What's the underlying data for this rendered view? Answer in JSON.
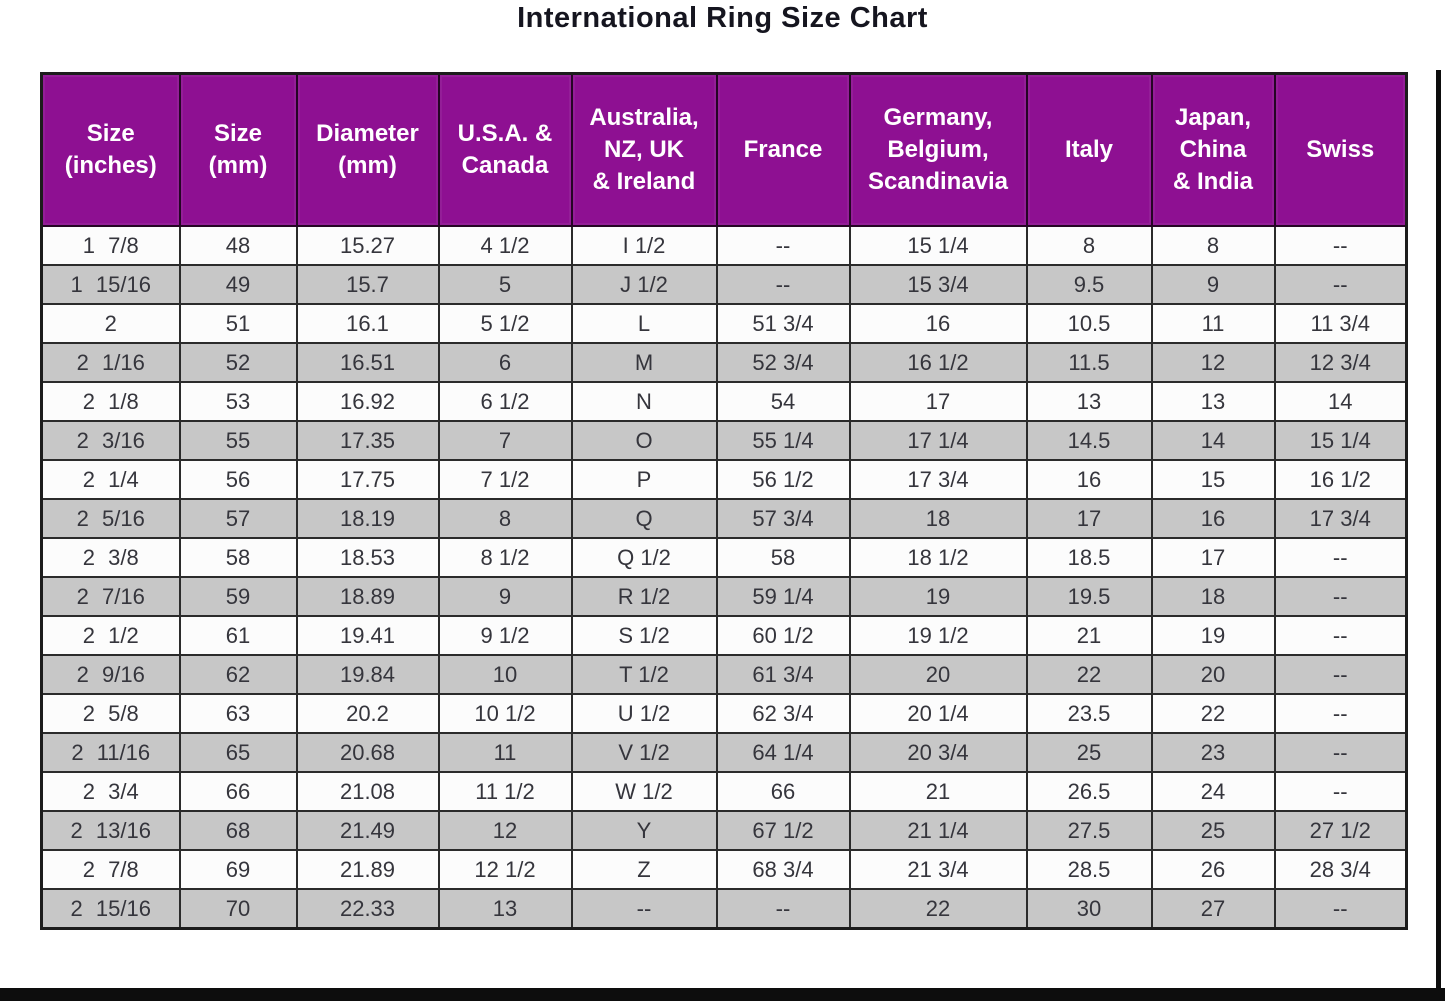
{
  "title": "International Ring Size Chart",
  "colors": {
    "header_background": "#8e1092",
    "header_text": "#ffffff",
    "row_white": "#fcfcfc",
    "row_gray": "#c7c7c7",
    "grid_line": "#2b2b2b",
    "frame_line": "#0d0d0d",
    "body_text": "#35353c",
    "title_text": "#15151f"
  },
  "chart_data": {
    "type": "table",
    "title": "International Ring Size Chart",
    "legend_position": "none",
    "grid": true,
    "columns": [
      "Size\n(inches)",
      "Size\n(mm)",
      "Diameter\n(mm)",
      "U.S.A. &\nCanada",
      "Australia,\nNZ, UK\n& Ireland",
      "France",
      "Germany,\nBelgium,\nScandinavia",
      "Italy",
      "Japan,\nChina\n& India",
      "Swiss"
    ],
    "rows": [
      [
        "1 7/8",
        "48",
        "15.27",
        "4 1/2",
        "I 1/2",
        "--",
        "15 1/4",
        "8",
        "8",
        "--"
      ],
      [
        "1 15/16",
        "49",
        "15.7",
        "5",
        "J 1/2",
        "--",
        "15 3/4",
        "9.5",
        "9",
        "--"
      ],
      [
        "2",
        "51",
        "16.1",
        "5 1/2",
        "L",
        "51 3/4",
        "16",
        "10.5",
        "11",
        "11 3/4"
      ],
      [
        "2 1/16",
        "52",
        "16.51",
        "6",
        "M",
        "52 3/4",
        "16 1/2",
        "11.5",
        "12",
        "12 3/4"
      ],
      [
        "2 1/8",
        "53",
        "16.92",
        "6 1/2",
        "N",
        "54",
        "17",
        "13",
        "13",
        "14"
      ],
      [
        "2 3/16",
        "55",
        "17.35",
        "7",
        "O",
        "55 1/4",
        "17 1/4",
        "14.5",
        "14",
        "15 1/4"
      ],
      [
        "2 1/4",
        "56",
        "17.75",
        "7 1/2",
        "P",
        "56 1/2",
        "17 3/4",
        "16",
        "15",
        "16 1/2"
      ],
      [
        "2 5/16",
        "57",
        "18.19",
        "8",
        "Q",
        "57 3/4",
        "18",
        "17",
        "16",
        "17 3/4"
      ],
      [
        "2 3/8",
        "58",
        "18.53",
        "8 1/2",
        "Q 1/2",
        "58",
        "18 1/2",
        "18.5",
        "17",
        "--"
      ],
      [
        "2 7/16",
        "59",
        "18.89",
        "9",
        "R 1/2",
        "59 1/4",
        "19",
        "19.5",
        "18",
        "--"
      ],
      [
        "2 1/2",
        "61",
        "19.41",
        "9 1/2",
        "S 1/2",
        "60 1/2",
        "19 1/2",
        "21",
        "19",
        "--"
      ],
      [
        "2 9/16",
        "62",
        "19.84",
        "10",
        "T 1/2",
        "61 3/4",
        "20",
        "22",
        "20",
        "--"
      ],
      [
        "2 5/8",
        "63",
        "20.2",
        "10 1/2",
        "U 1/2",
        "62 3/4",
        "20 1/4",
        "23.5",
        "22",
        "--"
      ],
      [
        "2 11/16",
        "65",
        "20.68",
        "11",
        "V 1/2",
        "64 1/4",
        "20 3/4",
        "25",
        "23",
        "--"
      ],
      [
        "2 3/4",
        "66",
        "21.08",
        "11 1/2",
        "W 1/2",
        "66",
        "21",
        "26.5",
        "24",
        "--"
      ],
      [
        "2 13/16",
        "68",
        "21.49",
        "12",
        "Y",
        "67 1/2",
        "21 1/4",
        "27.5",
        "25",
        "27 1/2"
      ],
      [
        "2 7/8",
        "69",
        "21.89",
        "12 1/2",
        "Z",
        "68 3/4",
        "21 3/4",
        "28.5",
        "26",
        "28 3/4"
      ],
      [
        "2 15/16",
        "70",
        "22.33",
        "13",
        "--",
        "--",
        "22",
        "30",
        "27",
        "--"
      ]
    ]
  }
}
